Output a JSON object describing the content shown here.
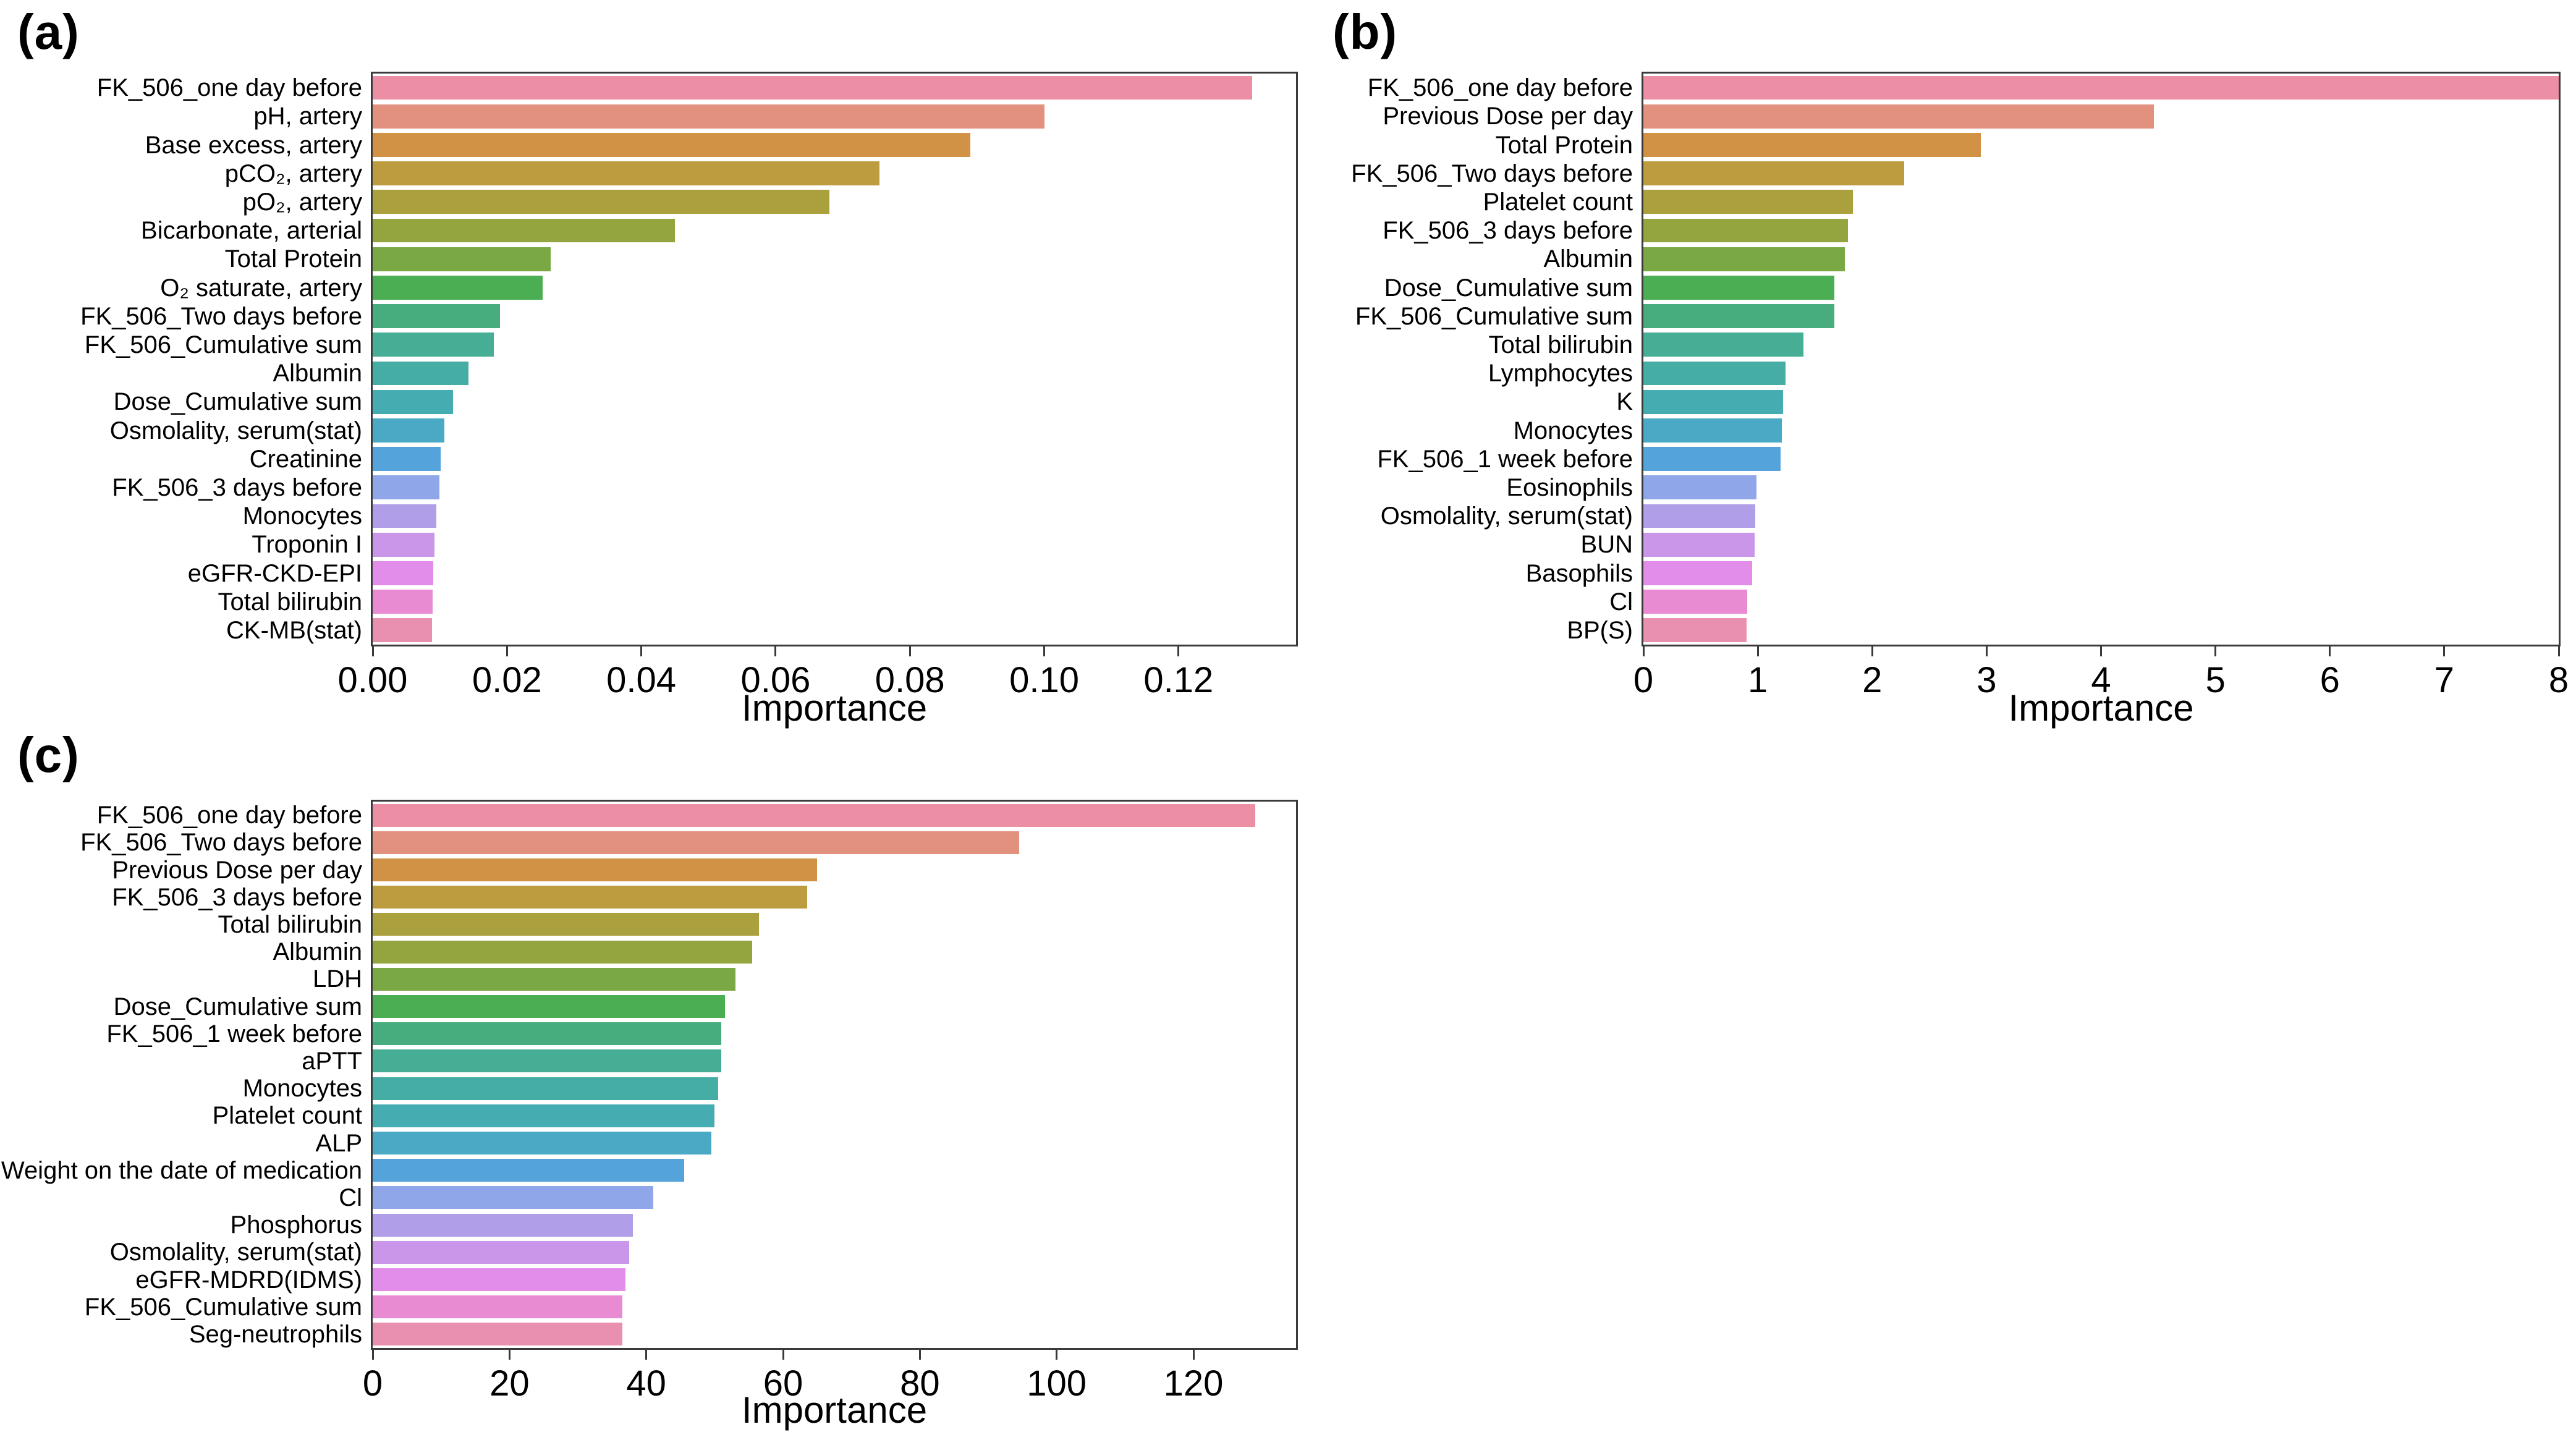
{
  "figure": {
    "background": "#ffffff",
    "frame_color": "#3a3a3a",
    "text_color": "#000000"
  },
  "palette": [
    "#ec8fa4",
    "#e2917f",
    "#d29246",
    "#bd9c40",
    "#aaa13e",
    "#94a43f",
    "#79a844",
    "#4cae52",
    "#48ad7e",
    "#46ae94",
    "#45ada4",
    "#45acb2",
    "#4aa9c4",
    "#54a4db",
    "#8fa6e8",
    "#b09ee9",
    "#c996e9",
    "#e18de9",
    "#e88bd2",
    "#e98fb0"
  ],
  "chart_data": [
    {
      "panel": "(a)",
      "type": "bar",
      "orientation": "horizontal",
      "xlabel": "Importance",
      "xlim": [
        0,
        0.1375
      ],
      "grid": false,
      "xticks": [
        0,
        0.02,
        0.04,
        0.06,
        0.08,
        0.1,
        0.12
      ],
      "xtick_labels": [
        "0.00",
        "0.02",
        "0.04",
        "0.06",
        "0.08",
        "0.10",
        "0.12"
      ],
      "categories": [
        "FK_506_one day before",
        "pH, artery",
        "Base excess, artery",
        "pCO₂, artery",
        "pO₂, artery",
        "Bicarbonate, arterial",
        "Total Protein",
        "O₂ saturate, artery",
        "FK_506_Two days before",
        "FK_506_Cumulative sum",
        "Albumin",
        "Dose_Cumulative sum",
        "Osmolality, serum(stat)",
        "Creatinine",
        "FK_506_3 days before",
        "Monocytes",
        "Troponin I",
        "eGFR-CKD-EPI",
        "Total bilirubin",
        "CK-MB(stat)"
      ],
      "values": [
        0.131,
        0.1,
        0.089,
        0.0755,
        0.068,
        0.045,
        0.0265,
        0.0253,
        0.019,
        0.018,
        0.0143,
        0.012,
        0.0107,
        0.0101,
        0.0099,
        0.0095,
        0.0092,
        0.009,
        0.0089,
        0.0088
      ]
    },
    {
      "panel": "(b)",
      "type": "bar",
      "orientation": "horizontal",
      "xlabel": "Importance",
      "xlim": [
        0,
        8
      ],
      "grid": false,
      "xticks": [
        0,
        1,
        2,
        3,
        4,
        5,
        6,
        7,
        8
      ],
      "xtick_labels": [
        "0",
        "1",
        "2",
        "3",
        "4",
        "5",
        "6",
        "7",
        "8"
      ],
      "categories": [
        "FK_506_one day before",
        "Previous Dose per day",
        "Total Protein",
        "FK_506_Two days before",
        "Platelet count",
        "FK_506_3 days before",
        "Albumin",
        "Dose_Cumulative sum",
        "FK_506_Cumulative sum",
        "Total bilirubin",
        "Lymphocytes",
        "K",
        "Monocytes",
        "FK_506_1 week before",
        "Eosinophils",
        "Osmolality, serum(stat)",
        "BUN",
        "Basophils",
        "Cl",
        "BP(S)"
      ],
      "values": [
        8.0,
        4.46,
        2.95,
        2.28,
        1.83,
        1.79,
        1.76,
        1.67,
        1.67,
        1.4,
        1.24,
        1.22,
        1.21,
        1.2,
        0.99,
        0.98,
        0.97,
        0.95,
        0.91,
        0.9
      ]
    },
    {
      "panel": "(c)",
      "type": "bar",
      "orientation": "horizontal",
      "xlabel": "Importance",
      "xlim": [
        0,
        135
      ],
      "grid": false,
      "xticks": [
        0,
        20,
        40,
        60,
        80,
        100,
        120
      ],
      "xtick_labels": [
        "0",
        "20",
        "40",
        "60",
        "80",
        "100",
        "120"
      ],
      "categories": [
        "FK_506_one day before",
        "FK_506_Two days before",
        "Previous Dose per day",
        "FK_506_3 days before",
        "Total bilirubin",
        "Albumin",
        "LDH",
        "Dose_Cumulative sum",
        "FK_506_1 week before",
        "aPTT",
        "Monocytes",
        "Platelet count",
        "ALP",
        "Weight on the date of medication",
        "Cl",
        "Phosphorus",
        "Osmolality, serum(stat)",
        "eGFR-MDRD(IDMS)",
        "FK_506_Cumulative sum",
        "Seg-neutrophils"
      ],
      "values": [
        129,
        94.5,
        65,
        63.5,
        56.5,
        55.5,
        53,
        51.5,
        51,
        51,
        50.5,
        50,
        49.5,
        45.5,
        41,
        38,
        37.5,
        37,
        36.5,
        36.5
      ]
    }
  ]
}
